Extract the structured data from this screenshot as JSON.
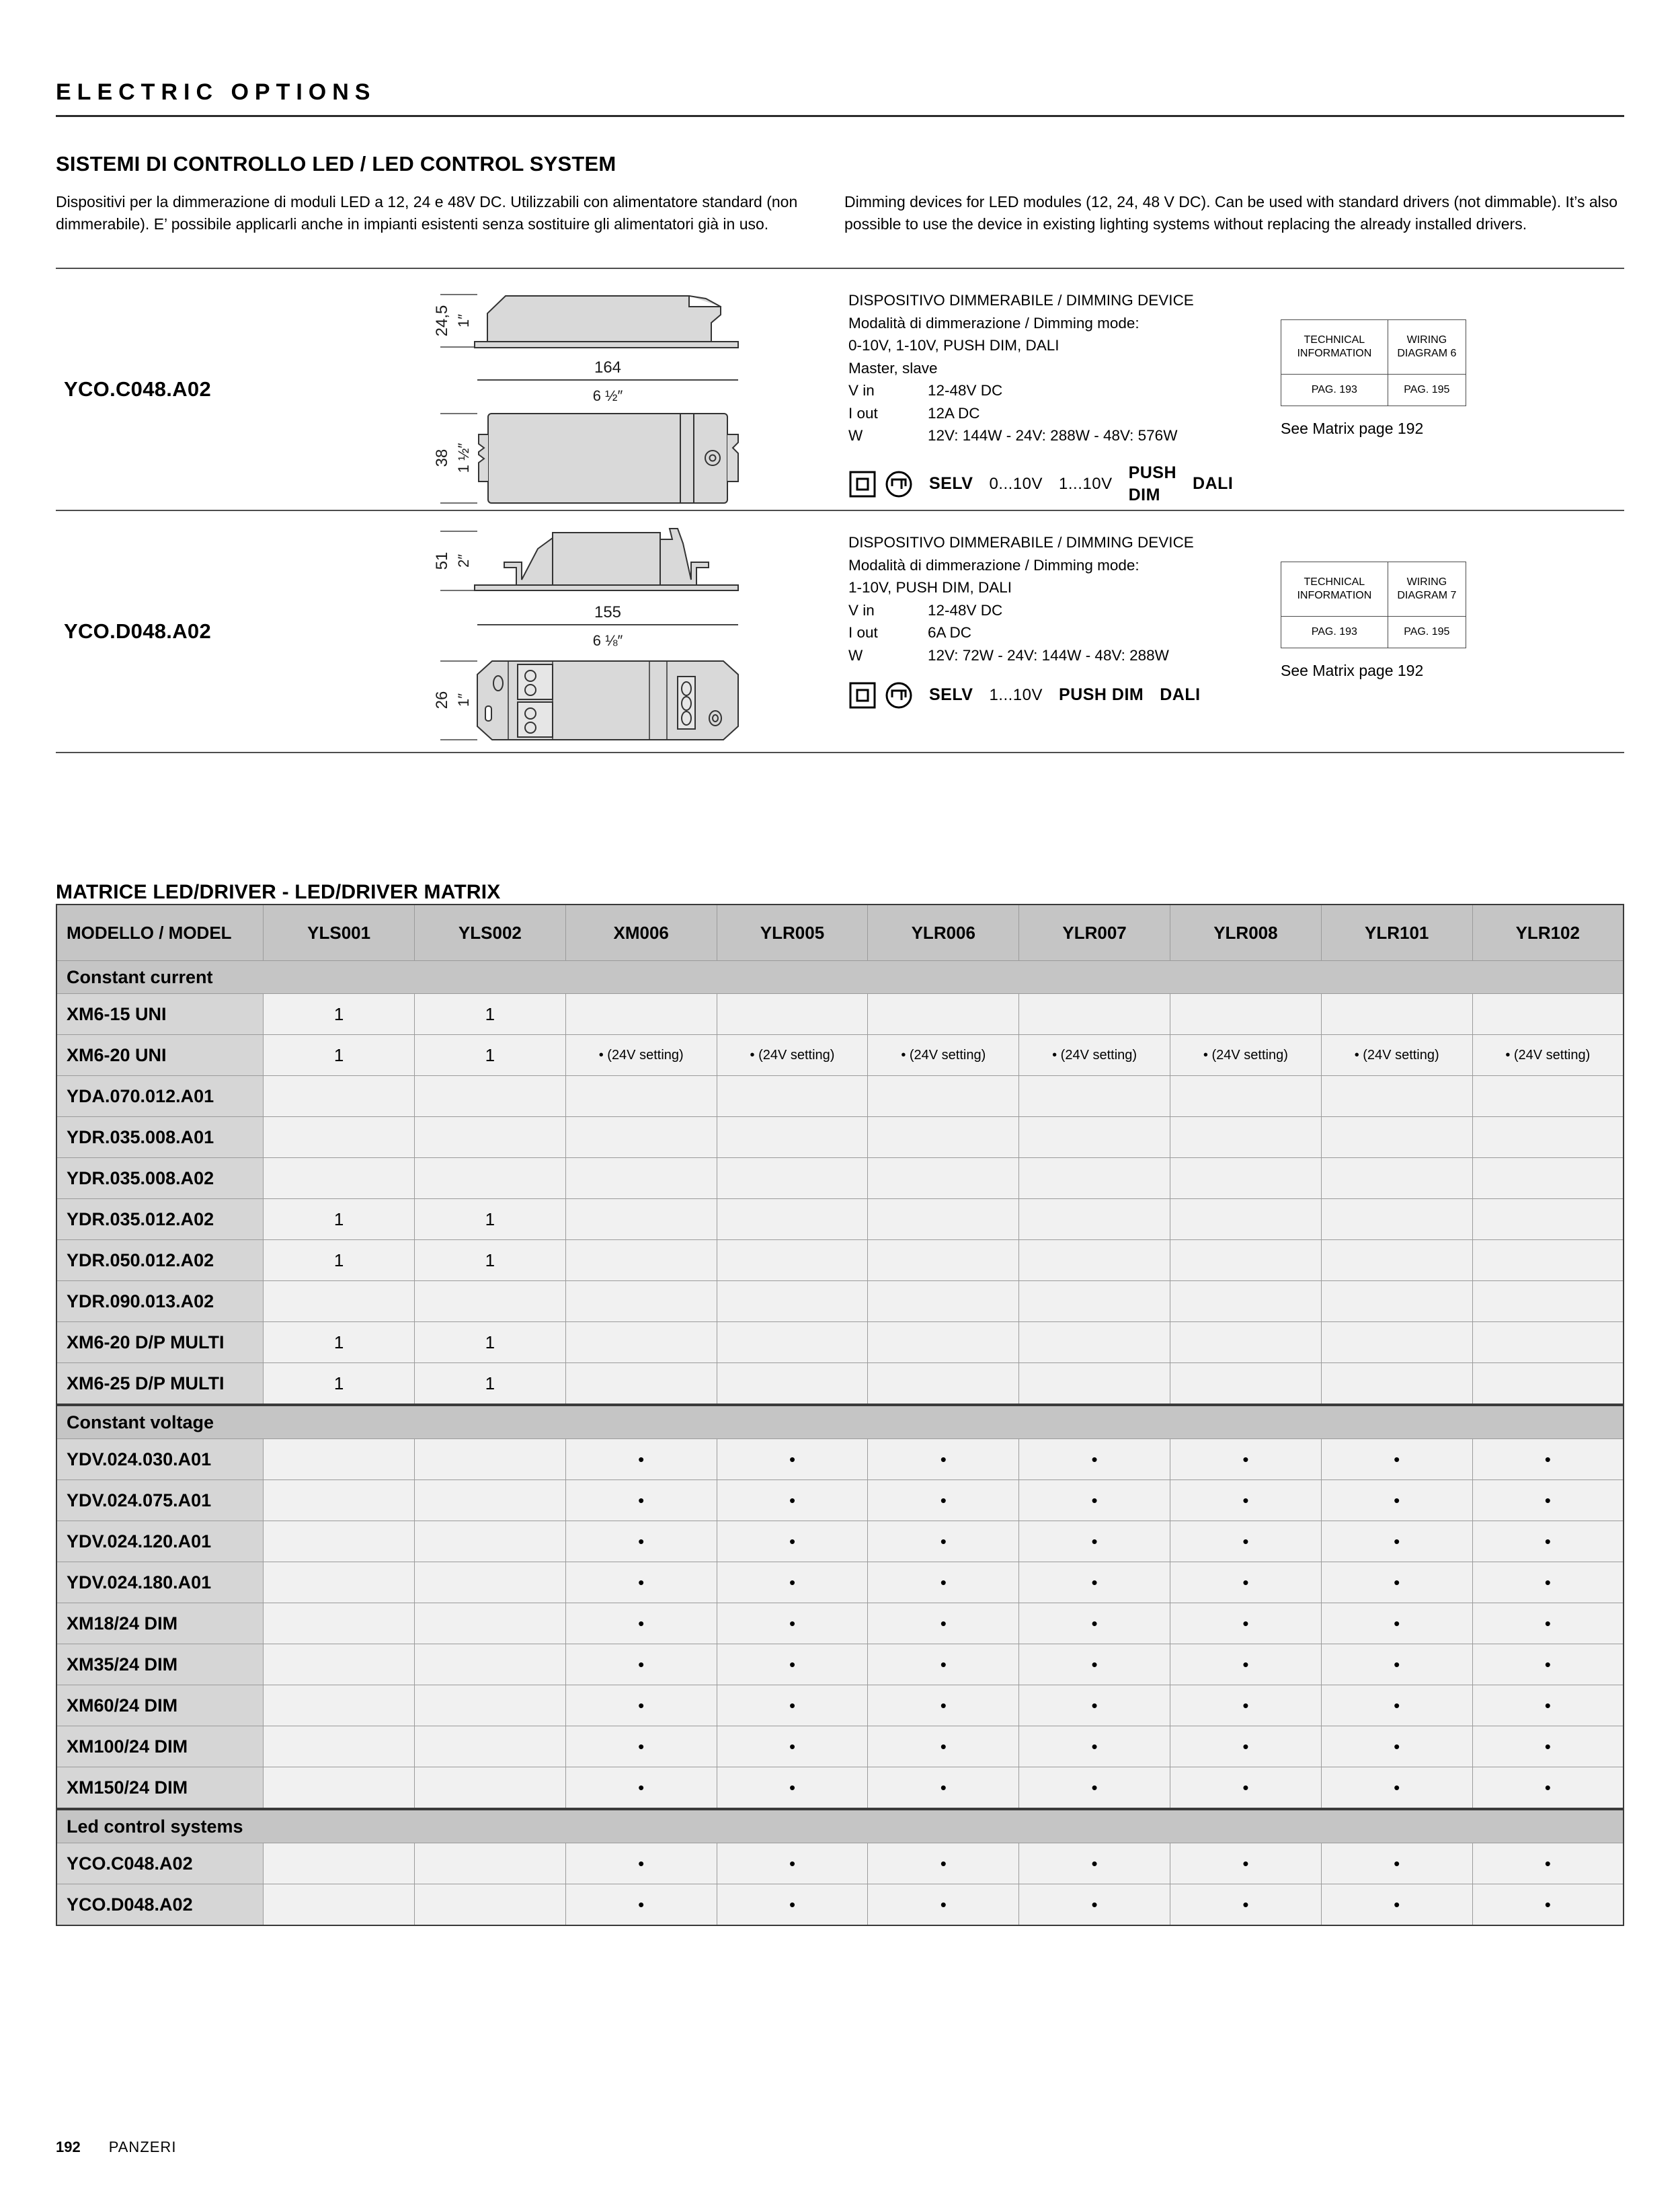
{
  "page_header": "ELECTRIC OPTIONS",
  "intro": {
    "title": "SISTEMI DI CONTROLLO LED / LED CONTROL SYSTEM",
    "text_it": "Dispositivi per la dimmerazione di moduli LED a 12, 24 e 48V DC. Utilizzabili con alimentatore standard (non dimmerabile). E’ possibile applicarli anche in impianti esistenti senza sostituire gli alimentatori già in uso.",
    "text_en": "Dimming devices for LED modules (12, 24, 48 V DC). Can be used with standard drivers (not dimmable). It’s also possible to use the device in existing lighting systems without replacing the already installed drivers."
  },
  "products": [
    {
      "model": "YCO.C048.A02",
      "dims": {
        "height_mm": "24,5",
        "height_in": "1″",
        "length_mm": "164",
        "length_in": "6 ½″",
        "width_mm": "38",
        "width_in": "1 ½″"
      },
      "title": "DISPOSITIVO DIMMERABILE / DIMMING DEVICE",
      "mode_label": "Modalità di dimmerazione / Dimming mode:",
      "modes": "0-10V, 1-10V, PUSH DIM, DALI",
      "master_slave": "Master, slave",
      "specs": [
        {
          "label": "V in",
          "value": "12-48V DC"
        },
        {
          "label": "I out",
          "value": "12A DC"
        },
        {
          "label": "W",
          "value": "12V: 144W - 24V: 288W - 48V: 576W"
        }
      ],
      "badges": [
        {
          "text": "SELV",
          "bold": true
        },
        {
          "text": "0...10V",
          "bold": false
        },
        {
          "text": "1...10V",
          "bold": false
        },
        {
          "text": "PUSH DIM",
          "bold": true
        },
        {
          "text": "DALI",
          "bold": true
        }
      ],
      "info_table": {
        "col1": "TECHNICAL INFORMATION",
        "col2": "WIRING DIAGRAM 6",
        "pag1": "PAG. 193",
        "pag2": "PAG. 195"
      },
      "see_matrix": "See Matrix page 192"
    },
    {
      "model": "YCO.D048.A02",
      "dims": {
        "height_mm": "51",
        "height_in": "2″",
        "length_mm": "155",
        "length_in": "6 ⅛″",
        "width_mm": "26",
        "width_in": "1″"
      },
      "title": "DISPOSITIVO DIMMERABILE / DIMMING DEVICE",
      "mode_label": "Modalità di dimmerazione / Dimming mode:",
      "modes": "1-10V, PUSH DIM, DALI",
      "specs": [
        {
          "label": "V in",
          "value": "12-48V DC"
        },
        {
          "label": "I out",
          "value": "6A DC"
        },
        {
          "label": "W",
          "value": "12V: 72W - 24V: 144W - 48V: 288W"
        }
      ],
      "badges": [
        {
          "text": "SELV",
          "bold": true
        },
        {
          "text": "1...10V",
          "bold": false
        },
        {
          "text": "PUSH DIM",
          "bold": true
        },
        {
          "text": "DALI",
          "bold": true
        }
      ],
      "info_table": {
        "col1": "TECHNICAL INFORMATION",
        "col2": "WIRING DIAGRAM 7",
        "pag1": "PAG. 193",
        "pag2": "PAG. 195"
      },
      "see_matrix": "See Matrix page 192"
    }
  ],
  "matrix": {
    "title": "MATRICE LED/DRIVER - LED/DRIVER MATRIX",
    "columns": [
      "MODELLO / MODEL",
      "YLS001",
      "YLS002",
      "XM006",
      "YLR005",
      "YLR006",
      "YLR007",
      "YLR008",
      "YLR101",
      "YLR102"
    ],
    "dot": "•",
    "sections": [
      {
        "name": "Constant current",
        "rows": [
          {
            "model": "XM6-15 UNI",
            "cells": [
              "1",
              "1",
              "",
              "",
              "",
              "",
              "",
              "",
              ""
            ]
          },
          {
            "model": "XM6-20 UNI",
            "cells": [
              "1",
              "1",
              "• (24V setting)",
              "• (24V setting)",
              "• (24V setting)",
              "• (24V setting)",
              "• (24V setting)",
              "• (24V setting)",
              "• (24V setting)"
            ]
          },
          {
            "model": "YDA.070.012.A01",
            "cells": [
              "",
              "",
              "",
              "",
              "",
              "",
              "",
              "",
              ""
            ]
          },
          {
            "model": "YDR.035.008.A01",
            "cells": [
              "",
              "",
              "",
              "",
              "",
              "",
              "",
              "",
              ""
            ]
          },
          {
            "model": "YDR.035.008.A02",
            "cells": [
              "",
              "",
              "",
              "",
              "",
              "",
              "",
              "",
              ""
            ]
          },
          {
            "model": "YDR.035.012.A02",
            "cells": [
              "1",
              "1",
              "",
              "",
              "",
              "",
              "",
              "",
              ""
            ]
          },
          {
            "model": "YDR.050.012.A02",
            "cells": [
              "1",
              "1",
              "",
              "",
              "",
              "",
              "",
              "",
              ""
            ]
          },
          {
            "model": "YDR.090.013.A02",
            "cells": [
              "",
              "",
              "",
              "",
              "",
              "",
              "",
              "",
              ""
            ]
          },
          {
            "model": "XM6-20 D/P MULTI",
            "cells": [
              "1",
              "1",
              "",
              "",
              "",
              "",
              "",
              "",
              ""
            ]
          },
          {
            "model": "XM6-25 D/P MULTI",
            "cells": [
              "1",
              "1",
              "",
              "",
              "",
              "",
              "",
              "",
              ""
            ]
          }
        ]
      },
      {
        "name": "Constant voltage",
        "rows": [
          {
            "model": "YDV.024.030.A01",
            "cells": [
              "",
              "",
              "•",
              "•",
              "•",
              "•",
              "•",
              "•",
              "•"
            ]
          },
          {
            "model": "YDV.024.075.A01",
            "cells": [
              "",
              "",
              "•",
              "•",
              "•",
              "•",
              "•",
              "•",
              "•"
            ]
          },
          {
            "model": "YDV.024.120.A01",
            "cells": [
              "",
              "",
              "•",
              "•",
              "•",
              "•",
              "•",
              "•",
              "•"
            ]
          },
          {
            "model": "YDV.024.180.A01",
            "cells": [
              "",
              "",
              "•",
              "•",
              "•",
              "•",
              "•",
              "•",
              "•"
            ]
          },
          {
            "model": "XM18/24 DIM",
            "cells": [
              "",
              "",
              "•",
              "•",
              "•",
              "•",
              "•",
              "•",
              "•"
            ]
          },
          {
            "model": "XM35/24 DIM",
            "cells": [
              "",
              "",
              "•",
              "•",
              "•",
              "•",
              "•",
              "•",
              "•"
            ]
          },
          {
            "model": "XM60/24 DIM",
            "cells": [
              "",
              "",
              "•",
              "•",
              "•",
              "•",
              "•",
              "•",
              "•"
            ]
          },
          {
            "model": "XM100/24 DIM",
            "cells": [
              "",
              "",
              "•",
              "•",
              "•",
              "•",
              "•",
              "•",
              "•"
            ]
          },
          {
            "model": "XM150/24 DIM",
            "cells": [
              "",
              "",
              "•",
              "•",
              "•",
              "•",
              "•",
              "•",
              "•"
            ]
          }
        ]
      },
      {
        "name": "Led control systems",
        "rows": [
          {
            "model": "YCO.C048.A02",
            "cells": [
              "",
              "",
              "•",
              "•",
              "•",
              "•",
              "•",
              "•",
              "•"
            ]
          },
          {
            "model": "YCO.D048.A02",
            "cells": [
              "",
              "",
              "•",
              "•",
              "•",
              "•",
              "•",
              "•",
              "•"
            ]
          }
        ]
      }
    ]
  },
  "footer": {
    "page_number": "192",
    "brand": "PANZERI"
  },
  "colors": {
    "table_header": "#c5c5c5",
    "row_label": "#d6d6d6",
    "cell": "#f1f1f1",
    "drawing_fill": "#d9d9d9"
  }
}
